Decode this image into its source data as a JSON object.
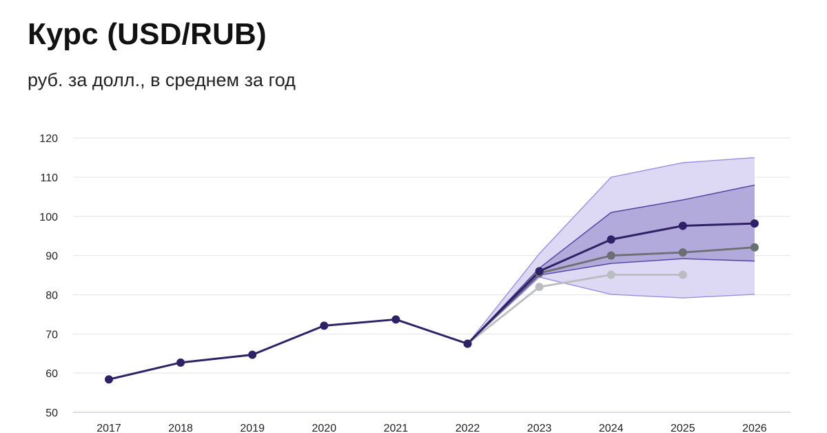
{
  "chart_data": {
    "type": "line",
    "title": "Курс (USD/RUB)",
    "subtitle": "руб. за долл., в среднем за год",
    "xlabel": "",
    "ylabel": "",
    "x": [
      "2017",
      "2018",
      "2019",
      "2020",
      "2021",
      "2022",
      "2023",
      "2024",
      "2025",
      "2026"
    ],
    "ylim": [
      50,
      120
    ],
    "yticks": [
      50,
      60,
      70,
      80,
      90,
      100,
      110,
      120
    ],
    "grid": true,
    "legend": "none",
    "series": [
      {
        "values": [
          58.4,
          62.7,
          64.7,
          72.1,
          73.7,
          67.5,
          86.0,
          94.1,
          97.6,
          98.2
        ],
        "color": "#2e2165",
        "markers": true
      },
      {
        "values": [
          null,
          null,
          null,
          null,
          null,
          67.5,
          85.5,
          90.0,
          90.8,
          92.1
        ],
        "color": "#6b6e72",
        "markers": true
      },
      {
        "values": [
          null,
          null,
          null,
          null,
          null,
          67.5,
          82.0,
          85.1,
          85.1,
          null
        ],
        "color": "#b9bcc0",
        "markers": true
      }
    ],
    "bands": [
      {
        "lower": [
          null,
          null,
          null,
          null,
          null,
          67.5,
          84.5,
          80.1,
          79.2,
          80.1
        ],
        "upper": [
          null,
          null,
          null,
          null,
          null,
          67.5,
          90.5,
          110.0,
          113.7,
          115.0
        ],
        "fill": "#ddd8f4",
        "stroke": "#9a8ee0"
      },
      {
        "lower": [
          null,
          null,
          null,
          null,
          null,
          67.5,
          85.0,
          88.0,
          89.2,
          88.6
        ],
        "upper": [
          null,
          null,
          null,
          null,
          null,
          67.5,
          86.8,
          101.0,
          104.2,
          108.0
        ],
        "fill": "#b1aadb",
        "stroke": "#4f3f9e"
      }
    ]
  }
}
